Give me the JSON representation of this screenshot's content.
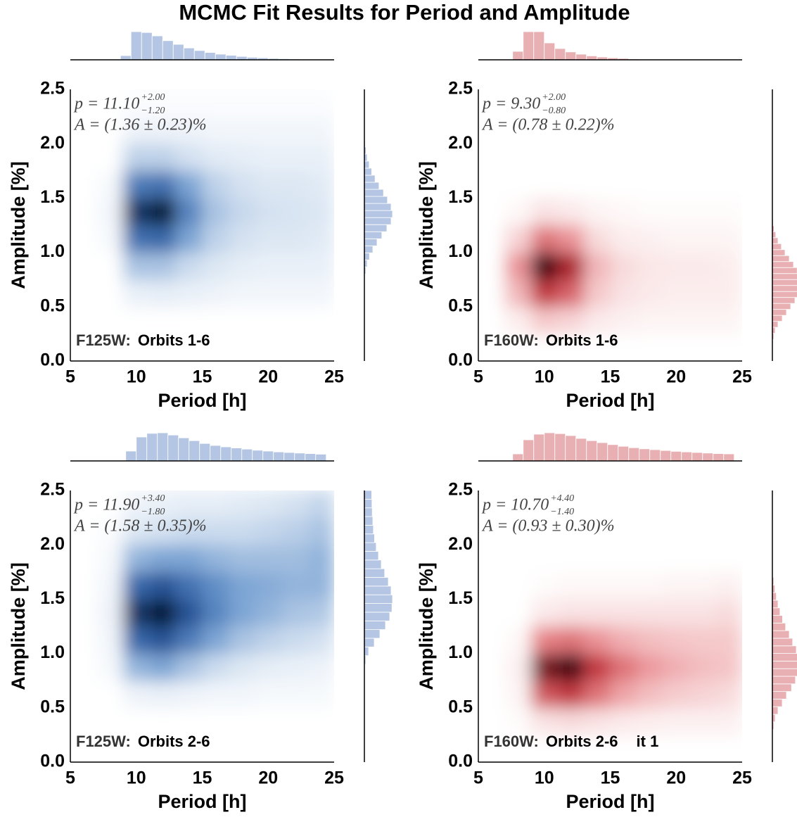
{
  "title": "MCMC Fit Results for Period and Amplitude",
  "chart_data": [
    {
      "type": "hexbin",
      "xlabel": "Period [h]",
      "ylabel": "Amplitude [%]",
      "xlim": [
        5,
        25
      ],
      "xticks": [
        5,
        10,
        15,
        20,
        25
      ],
      "ylim": [
        0,
        2.5
      ],
      "yticks": [
        {
          "value": 0,
          "label": "0.0"
        },
        0.5,
        {
          "value": 1,
          "label": "1.0"
        },
        1.5,
        {
          "value": 2,
          "label": "2.0"
        },
        2.5
      ],
      "annotation": {
        "p": "p = 11.10",
        "p_plus": "+2.00",
        "p_minus": "−1.20",
        "A": "A = (1.36 ± 0.23)%"
      },
      "filter": "F125W:",
      "orbits": "Orbits 1-6",
      "colormap": [
        "#ffffff",
        "#6f9bcf",
        "#2b5aa0",
        "#061833"
      ],
      "hist_color": "#b4c6e3",
      "density": {
        "xbins": [
          5,
          7,
          9,
          11,
          13,
          15,
          17,
          19,
          21,
          23,
          25
        ],
        "ybins": [
          0,
          0.25,
          0.5,
          0.75,
          1,
          1.25,
          1.5,
          1.75,
          2,
          2.25,
          2.5
        ],
        "values": [
          [
            0,
            0,
            0,
            0,
            0,
            0,
            0,
            0,
            0,
            0
          ],
          [
            0,
            0,
            0,
            0,
            0,
            0,
            0,
            0,
            0,
            0
          ],
          [
            0,
            0,
            0.05,
            0.06,
            0.05,
            0.04,
            0.03,
            0.03,
            0.03,
            0.03
          ],
          [
            0,
            0,
            0.2,
            0.2,
            0.12,
            0.08,
            0.06,
            0.05,
            0.05,
            0.05
          ],
          [
            0,
            0.02,
            0.55,
            0.6,
            0.3,
            0.15,
            0.1,
            0.08,
            0.08,
            0.07
          ],
          [
            0,
            0.03,
            0.85,
            1.0,
            0.45,
            0.2,
            0.13,
            0.1,
            0.09,
            0.08
          ],
          [
            0,
            0.02,
            0.5,
            0.55,
            0.3,
            0.15,
            0.1,
            0.08,
            0.08,
            0.07
          ],
          [
            0,
            0,
            0.15,
            0.15,
            0.1,
            0.07,
            0.06,
            0.05,
            0.05,
            0.05
          ],
          [
            0,
            0,
            0.04,
            0.04,
            0.04,
            0.03,
            0.03,
            0.03,
            0.03,
            0.03
          ],
          [
            0,
            0,
            0.01,
            0.01,
            0.01,
            0.01,
            0.01,
            0.01,
            0.01,
            0.01
          ]
        ]
      },
      "x_hist": {
        "bins": [
          8.8,
          9.6,
          10.4,
          11.2,
          12,
          12.8,
          13.6,
          14.4,
          15.2,
          16,
          16.8,
          17.6,
          18.4,
          19.2,
          20,
          20.8,
          21.6,
          22.4,
          23.2,
          24,
          24.8
        ],
        "counts": [
          0.15,
          1.0,
          0.97,
          0.85,
          0.68,
          0.55,
          0.42,
          0.33,
          0.26,
          0.2,
          0.16,
          0.12,
          0.09,
          0.07,
          0.05,
          0.04,
          0.03,
          0.02,
          0.015,
          0.01
        ]
      },
      "y_hist": {
        "bins": [
          0.8,
          0.865,
          0.93,
          0.995,
          1.06,
          1.125,
          1.19,
          1.255,
          1.32,
          1.385,
          1.45,
          1.515,
          1.58,
          1.645,
          1.71,
          1.775,
          1.84,
          1.905,
          1.97,
          2.035,
          2.1
        ],
        "counts": [
          0.05,
          0.1,
          0.18,
          0.3,
          0.45,
          0.62,
          0.8,
          0.95,
          1.0,
          0.95,
          0.82,
          0.68,
          0.52,
          0.38,
          0.26,
          0.17,
          0.1,
          0.06,
          0.03,
          0.02
        ]
      }
    },
    {
      "type": "hexbin",
      "xlabel": "Period [h]",
      "ylabel": "Amplitude [%]",
      "xlim": [
        5,
        25
      ],
      "xticks": [
        5,
        10,
        15,
        20,
        25
      ],
      "ylim": [
        0,
        2.5
      ],
      "yticks": [
        {
          "value": 0,
          "label": "0.0"
        },
        0.5,
        {
          "value": 1,
          "label": "1.0"
        },
        1.5,
        {
          "value": 2,
          "label": "2.0"
        },
        2.5
      ],
      "annotation": {
        "p": "p = 9.30",
        "p_plus": "+2.00",
        "p_minus": "−0.80",
        "A": "A = (0.78 ± 0.22)%"
      },
      "filter": "F160W:",
      "orbits": "Orbits 1-6",
      "colormap": [
        "#ffffff",
        "#e8868a",
        "#b8262f",
        "#3a0508"
      ],
      "hist_color": "#e8b0b3",
      "density": {
        "xbins": [
          5,
          7,
          9,
          11,
          13,
          15,
          17,
          19,
          21,
          23,
          25
        ],
        "ybins": [
          0,
          0.25,
          0.5,
          0.75,
          1,
          1.25,
          1.5,
          1.75,
          2,
          2.25,
          2.5
        ],
        "values": [
          [
            0,
            0,
            0,
            0,
            0,
            0,
            0,
            0,
            0,
            0
          ],
          [
            0,
            0.05,
            0.15,
            0.12,
            0.06,
            0.04,
            0.03,
            0.03,
            0.03,
            0.03
          ],
          [
            0,
            0.2,
            0.6,
            0.45,
            0.15,
            0.08,
            0.06,
            0.05,
            0.05,
            0.05
          ],
          [
            0,
            0.3,
            1.0,
            0.7,
            0.2,
            0.1,
            0.07,
            0.06,
            0.06,
            0.05
          ],
          [
            0,
            0.12,
            0.4,
            0.3,
            0.1,
            0.05,
            0.04,
            0.03,
            0.03,
            0.03
          ],
          [
            0,
            0.02,
            0.08,
            0.06,
            0.03,
            0.02,
            0.01,
            0.01,
            0.01,
            0.01
          ],
          [
            0,
            0,
            0,
            0,
            0,
            0,
            0,
            0,
            0,
            0
          ],
          [
            0,
            0,
            0,
            0,
            0,
            0,
            0,
            0,
            0,
            0
          ],
          [
            0,
            0,
            0,
            0,
            0,
            0,
            0,
            0,
            0,
            0
          ],
          [
            0,
            0,
            0,
            0,
            0,
            0,
            0,
            0,
            0,
            0
          ]
        ]
      },
      "x_hist": {
        "bins": [
          7.6,
          8.4,
          9.2,
          10,
          10.8,
          11.6,
          12.4,
          13.2,
          14,
          14.8,
          15.6,
          16.4,
          17.2,
          18,
          18.8,
          19.6,
          20.4,
          21.2,
          22,
          22.8,
          23.6,
          24.4
        ],
        "counts": [
          0.3,
          1.0,
          1.0,
          0.6,
          0.4,
          0.28,
          0.2,
          0.14,
          0.1,
          0.07,
          0.05,
          0.03,
          0.02,
          0.015,
          0.01,
          0.008,
          0.006,
          0.005,
          0.004,
          0.003,
          0.002
        ]
      },
      "y_hist": {
        "bins": [
          0.2,
          0.255,
          0.31,
          0.365,
          0.42,
          0.475,
          0.53,
          0.585,
          0.64,
          0.695,
          0.75,
          0.805,
          0.86,
          0.915,
          0.97,
          1.025,
          1.08,
          1.135,
          1.19,
          1.245,
          1.3
        ],
        "counts": [
          0.05,
          0.1,
          0.2,
          0.35,
          0.5,
          0.65,
          0.8,
          0.9,
          0.97,
          1.0,
          0.97,
          0.88,
          0.75,
          0.6,
          0.45,
          0.32,
          0.2,
          0.12,
          0.06,
          0.03
        ]
      }
    },
    {
      "type": "hexbin",
      "xlabel": "Period [h]",
      "ylabel": "Amplitude [%]",
      "xlim": [
        5,
        25
      ],
      "xticks": [
        5,
        10,
        15,
        20,
        25
      ],
      "ylim": [
        0,
        2.5
      ],
      "yticks": [
        {
          "value": 0,
          "label": "0.0"
        },
        0.5,
        {
          "value": 1,
          "label": "1.0"
        },
        1.5,
        {
          "value": 2,
          "label": "2.0"
        },
        2.5
      ],
      "annotation": {
        "p": "p = 11.90",
        "p_plus": "+3.40",
        "p_minus": "−1.80",
        "A": "A = (1.58 ± 0.35)%"
      },
      "filter": "F125W:",
      "orbits": "Orbits 2-6",
      "colormap": [
        "#ffffff",
        "#6f9bcf",
        "#2b5aa0",
        "#061833"
      ],
      "hist_color": "#b4c6e3",
      "density": {
        "xbins": [
          5,
          7,
          9,
          11,
          13,
          15,
          17,
          19,
          21,
          23,
          25
        ],
        "ybins": [
          0,
          0.25,
          0.5,
          0.75,
          1,
          1.25,
          1.5,
          1.75,
          2,
          2.25,
          2.5
        ],
        "values": [
          [
            0,
            0,
            0,
            0,
            0,
            0,
            0,
            0,
            0,
            0
          ],
          [
            0,
            0,
            0,
            0,
            0,
            0,
            0,
            0,
            0,
            0
          ],
          [
            0,
            0,
            0.04,
            0.05,
            0.04,
            0.03,
            0.03,
            0.02,
            0.02,
            0.02
          ],
          [
            0,
            0.02,
            0.25,
            0.3,
            0.2,
            0.12,
            0.08,
            0.06,
            0.05,
            0.04
          ],
          [
            0,
            0.03,
            0.6,
            0.7,
            0.5,
            0.3,
            0.2,
            0.15,
            0.12,
            0.1
          ],
          [
            0,
            0.04,
            0.85,
            1.0,
            0.7,
            0.45,
            0.3,
            0.25,
            0.2,
            0.18
          ],
          [
            0,
            0.03,
            0.6,
            0.7,
            0.55,
            0.4,
            0.3,
            0.28,
            0.25,
            0.25
          ],
          [
            0,
            0.02,
            0.25,
            0.3,
            0.3,
            0.25,
            0.22,
            0.22,
            0.22,
            0.25
          ],
          [
            0,
            0.01,
            0.08,
            0.1,
            0.12,
            0.12,
            0.12,
            0.14,
            0.16,
            0.2
          ],
          [
            0,
            0,
            0.04,
            0.05,
            0.06,
            0.06,
            0.07,
            0.08,
            0.1,
            0.14
          ]
        ]
      },
      "x_hist": {
        "bins": [
          9.2,
          10,
          10.8,
          11.6,
          12.4,
          13.2,
          14,
          14.8,
          15.6,
          16.4,
          17.2,
          18,
          18.8,
          19.6,
          20.4,
          21.2,
          22,
          22.8,
          23.6,
          24.4
        ],
        "counts": [
          0.35,
          0.85,
          0.98,
          1.0,
          0.92,
          0.82,
          0.72,
          0.62,
          0.55,
          0.5,
          0.46,
          0.42,
          0.38,
          0.35,
          0.32,
          0.3,
          0.28,
          0.26,
          0.24
        ]
      },
      "y_hist": {
        "bins": [
          0.9,
          0.98,
          1.06,
          1.14,
          1.22,
          1.3,
          1.38,
          1.46,
          1.54,
          1.62,
          1.7,
          1.78,
          1.86,
          1.94,
          2.02,
          2.1,
          2.18,
          2.26,
          2.34,
          2.42,
          2.5
        ],
        "counts": [
          0.05,
          0.15,
          0.35,
          0.55,
          0.75,
          0.9,
          0.98,
          1.0,
          0.95,
          0.85,
          0.72,
          0.6,
          0.5,
          0.42,
          0.36,
          0.32,
          0.3,
          0.28,
          0.27,
          0.26
        ]
      }
    },
    {
      "type": "hexbin",
      "xlabel": "Period [h]",
      "ylabel": "Amplitude [%]",
      "xlim": [
        5,
        25
      ],
      "xticks": [
        5,
        10,
        15,
        20,
        25
      ],
      "ylim": [
        0,
        2.5
      ],
      "yticks": [
        {
          "value": 0,
          "label": "0.0"
        },
        0.5,
        {
          "value": 1,
          "label": "1.0"
        },
        1.5,
        {
          "value": 2,
          "label": "2.0"
        },
        2.5
      ],
      "annotation": {
        "p": "p = 10.70",
        "p_plus": "+4.40",
        "p_minus": "−1.40",
        "A": "A = (0.93 ± 0.30)%"
      },
      "filter": "F160W:",
      "orbits": "Orbits 2-6",
      "extra": "it 1",
      "colormap": [
        "#ffffff",
        "#e8868a",
        "#b8262f",
        "#3a0508"
      ],
      "hist_color": "#e8b0b3",
      "density": {
        "xbins": [
          5,
          7,
          9,
          11,
          13,
          15,
          17,
          19,
          21,
          23,
          25
        ],
        "ybins": [
          0,
          0.25,
          0.5,
          0.75,
          1,
          1.25,
          1.5,
          1.75,
          2,
          2.25,
          2.5
        ],
        "values": [
          [
            0,
            0,
            0,
            0,
            0,
            0,
            0,
            0,
            0,
            0
          ],
          [
            0,
            0.01,
            0.08,
            0.1,
            0.08,
            0.06,
            0.05,
            0.04,
            0.04,
            0.04
          ],
          [
            0,
            0.03,
            0.5,
            0.6,
            0.4,
            0.25,
            0.18,
            0.14,
            0.12,
            0.1
          ],
          [
            0,
            0.04,
            0.85,
            1.0,
            0.6,
            0.4,
            0.28,
            0.22,
            0.18,
            0.16
          ],
          [
            0,
            0.02,
            0.35,
            0.4,
            0.3,
            0.22,
            0.18,
            0.16,
            0.15,
            0.15
          ],
          [
            0,
            0,
            0.06,
            0.08,
            0.08,
            0.08,
            0.08,
            0.08,
            0.08,
            0.1
          ],
          [
            0,
            0,
            0.01,
            0.02,
            0.02,
            0.02,
            0.02,
            0.03,
            0.03,
            0.04
          ],
          [
            0,
            0,
            0,
            0,
            0,
            0,
            0,
            0,
            0,
            0
          ],
          [
            0,
            0,
            0,
            0,
            0,
            0,
            0,
            0,
            0,
            0
          ],
          [
            0,
            0,
            0,
            0,
            0,
            0,
            0,
            0,
            0,
            0
          ]
        ]
      },
      "x_hist": {
        "bins": [
          7.6,
          8.4,
          9.2,
          10,
          10.8,
          11.6,
          12.4,
          13.2,
          14,
          14.8,
          15.6,
          16.4,
          17.2,
          18,
          18.8,
          19.6,
          20.4,
          21.2,
          22,
          22.8,
          23.6,
          24.4
        ],
        "counts": [
          0.25,
          0.75,
          0.95,
          1.0,
          0.97,
          0.9,
          0.8,
          0.72,
          0.65,
          0.58,
          0.52,
          0.47,
          0.43,
          0.4,
          0.37,
          0.34,
          0.32,
          0.3,
          0.28,
          0.26,
          0.25
        ]
      },
      "y_hist": {
        "bins": [
          0.3,
          0.37,
          0.44,
          0.51,
          0.58,
          0.65,
          0.72,
          0.79,
          0.86,
          0.93,
          1.0,
          1.07,
          1.14,
          1.21,
          1.28,
          1.35,
          1.42,
          1.49,
          1.56,
          1.63,
          1.7
        ],
        "counts": [
          0.05,
          0.1,
          0.2,
          0.35,
          0.5,
          0.68,
          0.82,
          0.95,
          1.0,
          0.95,
          0.85,
          0.72,
          0.6,
          0.47,
          0.36,
          0.27,
          0.2,
          0.14,
          0.09,
          0.05
        ]
      }
    }
  ]
}
